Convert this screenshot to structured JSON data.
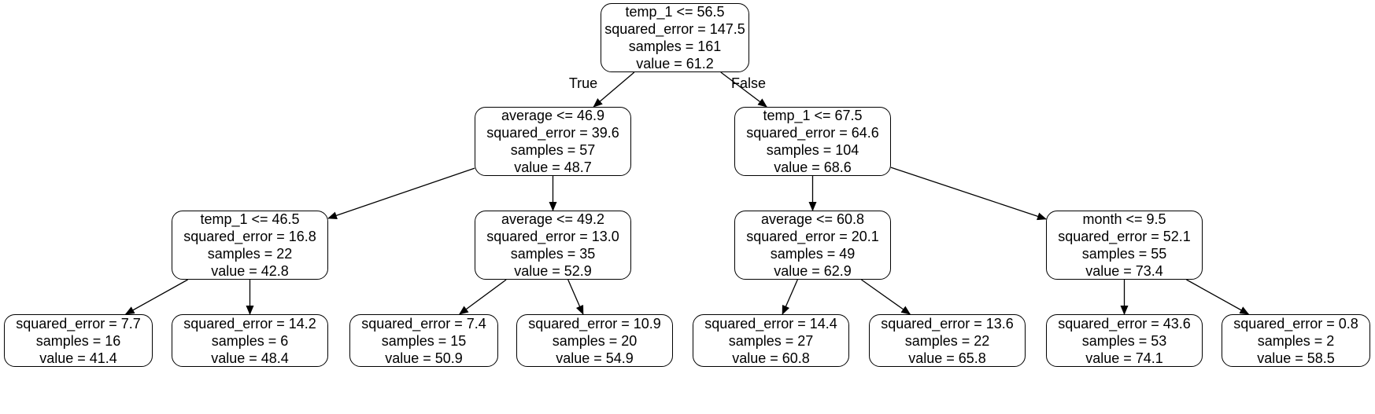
{
  "tree": {
    "nodes": [
      {
        "id": "n0",
        "lines": [
          "temp_1 <= 56.5",
          "squared_error = 147.5",
          "samples = 161",
          "value = 61.2"
        ]
      },
      {
        "id": "n1",
        "lines": [
          "average <= 46.9",
          "squared_error = 39.6",
          "samples = 57",
          "value = 48.7"
        ]
      },
      {
        "id": "n2",
        "lines": [
          "temp_1 <= 67.5",
          "squared_error = 64.6",
          "samples = 104",
          "value = 68.6"
        ]
      },
      {
        "id": "n3",
        "lines": [
          "temp_1 <= 46.5",
          "squared_error = 16.8",
          "samples = 22",
          "value = 42.8"
        ]
      },
      {
        "id": "n4",
        "lines": [
          "average <= 49.2",
          "squared_error = 13.0",
          "samples = 35",
          "value = 52.9"
        ]
      },
      {
        "id": "n5",
        "lines": [
          "average <= 60.8",
          "squared_error = 20.1",
          "samples = 49",
          "value = 62.9"
        ]
      },
      {
        "id": "n6",
        "lines": [
          "month <= 9.5",
          "squared_error = 52.1",
          "samples = 55",
          "value = 73.4"
        ]
      },
      {
        "id": "n7",
        "lines": [
          "squared_error = 7.7",
          "samples = 16",
          "value = 41.4"
        ]
      },
      {
        "id": "n8",
        "lines": [
          "squared_error = 14.2",
          "samples = 6",
          "value = 48.4"
        ]
      },
      {
        "id": "n9",
        "lines": [
          "squared_error = 7.4",
          "samples = 15",
          "value = 50.9"
        ]
      },
      {
        "id": "n10",
        "lines": [
          "squared_error = 10.9",
          "samples = 20",
          "value = 54.9"
        ]
      },
      {
        "id": "n11",
        "lines": [
          "squared_error = 14.4",
          "samples = 27",
          "value = 60.8"
        ]
      },
      {
        "id": "n12",
        "lines": [
          "squared_error = 13.6",
          "samples = 22",
          "value = 65.8"
        ]
      },
      {
        "id": "n13",
        "lines": [
          "squared_error = 43.6",
          "samples = 53",
          "value = 74.1"
        ]
      },
      {
        "id": "n14",
        "lines": [
          "squared_error = 0.8",
          "samples = 2",
          "value = 58.5"
        ]
      }
    ],
    "edges": [
      {
        "from": "n0",
        "to": "n1",
        "label": "True"
      },
      {
        "from": "n0",
        "to": "n2",
        "label": "False"
      },
      {
        "from": "n1",
        "to": "n3"
      },
      {
        "from": "n1",
        "to": "n4"
      },
      {
        "from": "n2",
        "to": "n5"
      },
      {
        "from": "n2",
        "to": "n6"
      },
      {
        "from": "n3",
        "to": "n7"
      },
      {
        "from": "n3",
        "to": "n8"
      },
      {
        "from": "n4",
        "to": "n9"
      },
      {
        "from": "n4",
        "to": "n10"
      },
      {
        "from": "n5",
        "to": "n11"
      },
      {
        "from": "n5",
        "to": "n12"
      },
      {
        "from": "n6",
        "to": "n13"
      },
      {
        "from": "n6",
        "to": "n14"
      }
    ]
  }
}
